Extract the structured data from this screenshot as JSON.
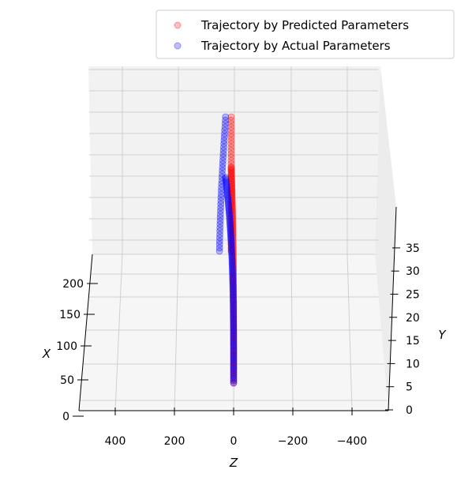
{
  "chart_data": {
    "type": "scatter",
    "projection": "3d",
    "title": "",
    "axes": {
      "x": {
        "label": "X",
        "ticks": [
          "0",
          "50",
          "100",
          "150",
          "200"
        ],
        "range": [
          0,
          230
        ]
      },
      "y": {
        "label": "Y",
        "ticks": [
          "0",
          "5",
          "10",
          "15",
          "20",
          "25",
          "30",
          "35"
        ],
        "range": [
          0,
          37
        ]
      },
      "z": {
        "label": "Z",
        "ticks": [
          "400",
          "200",
          "0",
          "−200",
          "−400"
        ],
        "range": [
          500,
          -500
        ]
      }
    },
    "grid": true,
    "legend": {
      "placement": "top-right",
      "entries": [
        {
          "label": "Trajectory by Predicted Parameters",
          "color": "#ff0000"
        },
        {
          "label": "Trajectory by Actual Parameters",
          "color": "#0000ff"
        }
      ]
    },
    "series": [
      {
        "name": "Trajectory by Predicted Parameters",
        "color": "#ff0000",
        "alpha": 0.25,
        "z_start": 30,
        "z_end": 0,
        "y_max": 29.4
      },
      {
        "name": "Trajectory by Actual Parameters",
        "color": "#0000ff",
        "alpha": 0.25,
        "z_start": 60,
        "z_end": 0,
        "y_max": 28
      }
    ]
  }
}
